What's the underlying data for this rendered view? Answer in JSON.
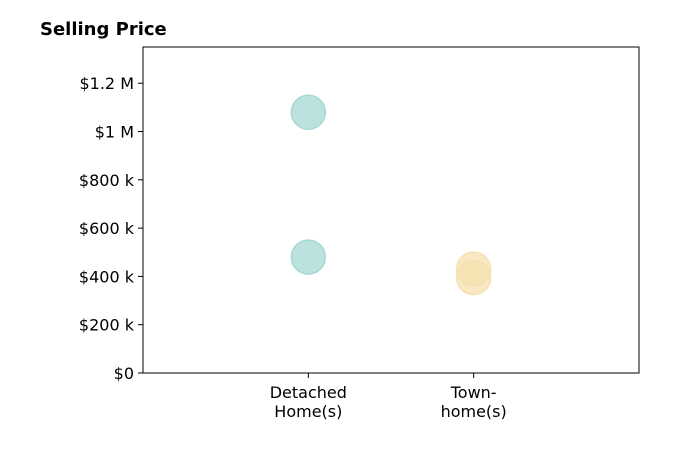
{
  "chart_data": {
    "type": "strip",
    "title": "Selling Price",
    "categories": [
      "Detached\nHome(s)",
      "Town-\nhome(s)"
    ],
    "values": [
      [
        1080000,
        480000
      ],
      [
        430000,
        395000
      ]
    ],
    "colors": [
      "#a6d8d4",
      "#f5e2b0"
    ],
    "ylim": [
      0,
      1350000
    ],
    "yticks": [
      {
        "value": 0,
        "label": "$0"
      },
      {
        "value": 200000,
        "label": "$200 k"
      },
      {
        "value": 400000,
        "label": "$400 k"
      },
      {
        "value": 600000,
        "label": "$600 k"
      },
      {
        "value": 800000,
        "label": "$800 k"
      },
      {
        "value": 1000000,
        "label": "$1 M"
      },
      {
        "value": 1200000,
        "label": "$1.2 M"
      }
    ]
  }
}
